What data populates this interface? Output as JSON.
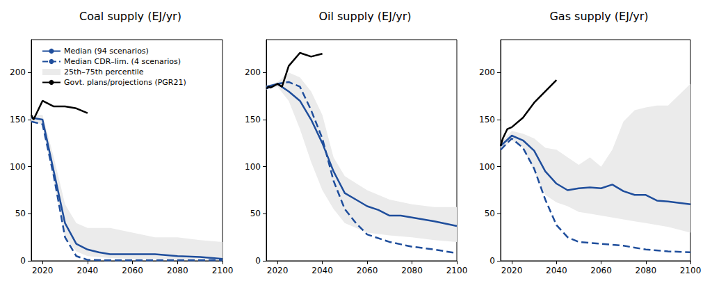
{
  "chart_data": [
    {
      "type": "line",
      "title": "Coal supply (EJ/yr)",
      "legend": "upper left",
      "xlim": [
        2015,
        2100
      ],
      "xticks": [
        2020,
        2040,
        2060,
        2080,
        2100
      ],
      "ylim": [
        0,
        235
      ],
      "yticks": [
        0,
        50,
        100,
        150,
        200
      ],
      "series": [
        {
          "name": "Median (94 scenarios)",
          "color": "#1f4e9c",
          "line_style": "solid",
          "x": [
            2015,
            2020,
            2025,
            2030,
            2035,
            2040,
            2045,
            2050,
            2060,
            2070,
            2080,
            2090,
            2100
          ],
          "values": [
            152,
            150,
            95,
            40,
            18,
            12,
            9,
            7,
            7,
            7,
            5,
            4,
            2
          ]
        },
        {
          "name": "Median CDR–lim. (4 scenarios)",
          "color": "#1f4e9c",
          "line_style": "dashed",
          "x": [
            2015,
            2020,
            2025,
            2030,
            2035,
            2040,
            2050,
            2060,
            2070,
            2080,
            2090,
            2100
          ],
          "values": [
            148,
            145,
            90,
            25,
            5,
            1,
            0.5,
            0.5,
            0.5,
            0.5,
            0.5,
            0.5
          ]
        },
        {
          "name": "25th–75th percentile",
          "type": "band",
          "color": "#ebebeb",
          "x": [
            2015,
            2020,
            2025,
            2030,
            2035,
            2040,
            2050,
            2060,
            2070,
            2080,
            2090,
            2100
          ],
          "lower": [
            148,
            145,
            85,
            25,
            10,
            5,
            3,
            2,
            2,
            1,
            1,
            1
          ],
          "upper": [
            155,
            155,
            110,
            60,
            40,
            35,
            35,
            30,
            25,
            25,
            22,
            20
          ]
        },
        {
          "name": "Govt. plans/projections (PGR21)",
          "color": "#000000",
          "line_style": "solid",
          "x": [
            2015,
            2016,
            2020,
            2025,
            2030,
            2035,
            2040
          ],
          "values": [
            155,
            150,
            170,
            164,
            164,
            162,
            157
          ]
        }
      ]
    },
    {
      "type": "line",
      "title": "Oil supply (EJ/yr)",
      "xlim": [
        2015,
        2100
      ],
      "xticks": [
        2020,
        2040,
        2060,
        2080,
        2100
      ],
      "ylim": [
        0,
        235
      ],
      "yticks": [
        0,
        50,
        100,
        150,
        200
      ],
      "series": [
        {
          "name": "Median (94 scenarios)",
          "color": "#1f4e9c",
          "line_style": "solid",
          "x": [
            2015,
            2020,
            2025,
            2030,
            2035,
            2040,
            2045,
            2050,
            2055,
            2060,
            2065,
            2070,
            2075,
            2080,
            2090,
            2100
          ],
          "values": [
            185,
            188,
            180,
            170,
            150,
            125,
            95,
            72,
            65,
            58,
            54,
            48,
            48,
            46,
            42,
            37
          ]
        },
        {
          "name": "Median CDR–lim. (4 scenarios)",
          "color": "#1f4e9c",
          "line_style": "dashed",
          "x": [
            2015,
            2020,
            2025,
            2030,
            2035,
            2040,
            2045,
            2050,
            2055,
            2060,
            2070,
            2080,
            2090,
            2100
          ],
          "values": [
            183,
            188,
            190,
            185,
            160,
            130,
            85,
            55,
            40,
            28,
            20,
            15,
            12,
            8
          ]
        },
        {
          "name": "25th–75th percentile",
          "type": "band",
          "color": "#ebebeb",
          "x": [
            2015,
            2020,
            2025,
            2030,
            2035,
            2040,
            2045,
            2050,
            2060,
            2070,
            2080,
            2090,
            2100
          ],
          "lower": [
            182,
            185,
            170,
            140,
            105,
            75,
            55,
            40,
            30,
            27,
            25,
            22,
            20
          ],
          "upper": [
            186,
            190,
            200,
            195,
            180,
            155,
            110,
            90,
            75,
            65,
            60,
            57,
            57
          ]
        },
        {
          "name": "Govt. plans/projections (PGR21)",
          "color": "#000000",
          "line_style": "solid",
          "x": [
            2015,
            2016,
            2017,
            2020,
            2022,
            2025,
            2030,
            2035,
            2040
          ],
          "values": [
            183,
            185,
            184,
            188,
            185,
            207,
            221,
            217,
            220
          ]
        }
      ]
    },
    {
      "type": "line",
      "title": "Gas supply (EJ/yr)",
      "xlim": [
        2015,
        2100
      ],
      "xticks": [
        2020,
        2040,
        2060,
        2080,
        2100
      ],
      "ylim": [
        0,
        235
      ],
      "yticks": [
        0,
        50,
        100,
        150,
        200
      ],
      "series": [
        {
          "name": "Median (94 scenarios)",
          "color": "#1f4e9c",
          "line_style": "solid",
          "x": [
            2015,
            2020,
            2025,
            2030,
            2035,
            2040,
            2045,
            2050,
            2055,
            2060,
            2065,
            2070,
            2075,
            2080,
            2085,
            2090,
            2100
          ],
          "values": [
            122,
            133,
            128,
            117,
            95,
            82,
            75,
            77,
            78,
            77,
            81,
            74,
            70,
            70,
            64,
            63,
            60
          ]
        },
        {
          "name": "Median CDR–lim. (4 scenarios)",
          "color": "#1f4e9c",
          "line_style": "dashed",
          "x": [
            2015,
            2020,
            2025,
            2030,
            2035,
            2040,
            2045,
            2050,
            2060,
            2070,
            2080,
            2090,
            2100
          ],
          "values": [
            118,
            130,
            120,
            98,
            65,
            38,
            25,
            20,
            18,
            16,
            12,
            10,
            9
          ]
        },
        {
          "name": "25th–75th percentile",
          "type": "band",
          "color": "#ebebeb",
          "x": [
            2015,
            2020,
            2025,
            2030,
            2035,
            2040,
            2045,
            2050,
            2055,
            2060,
            2065,
            2070,
            2075,
            2080,
            2085,
            2090,
            2100
          ],
          "lower": [
            118,
            128,
            120,
            95,
            70,
            62,
            58,
            52,
            50,
            48,
            46,
            44,
            42,
            40,
            38,
            36,
            30
          ],
          "upper": [
            125,
            138,
            135,
            130,
            120,
            118,
            110,
            102,
            110,
            100,
            118,
            148,
            160,
            163,
            165,
            165,
            188
          ]
        },
        {
          "name": "Govt. plans/projections (PGR21)",
          "color": "#000000",
          "line_style": "solid",
          "x": [
            2015,
            2016,
            2018,
            2020,
            2025,
            2030,
            2035,
            2040
          ],
          "values": [
            122,
            130,
            140,
            142,
            152,
            168,
            180,
            192
          ]
        }
      ]
    }
  ]
}
